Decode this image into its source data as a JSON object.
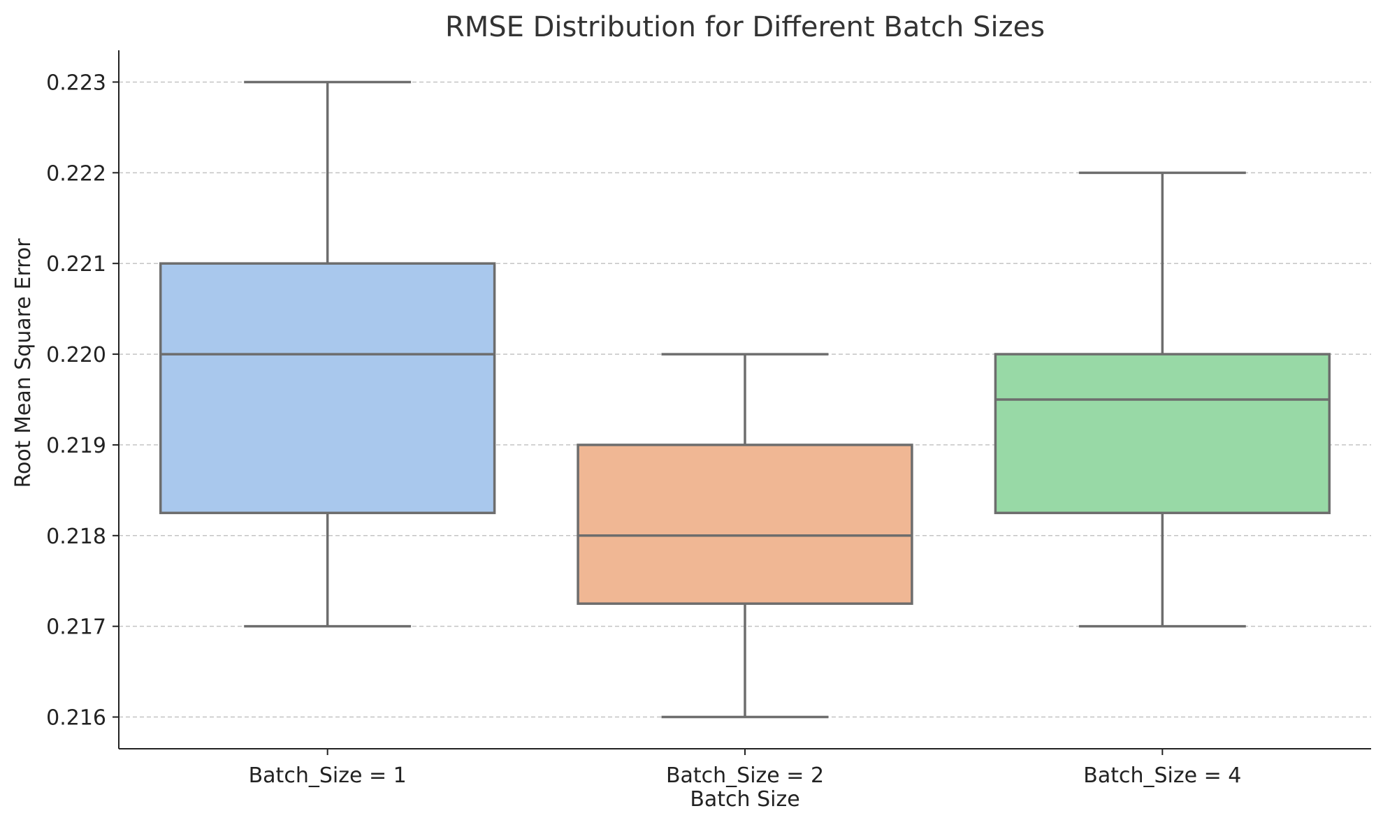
{
  "chart_data": {
    "type": "box",
    "title": "RMSE Distribution for Different Batch Sizes",
    "xlabel": "Batch Size",
    "ylabel": "Root Mean Square Error",
    "ylim": [
      0.21565,
      0.22335
    ],
    "yticks": [
      0.216,
      0.217,
      0.218,
      0.219,
      0.22,
      0.221,
      0.222,
      0.223
    ],
    "ytick_labels": [
      "0.216",
      "0.217",
      "0.218",
      "0.219",
      "0.220",
      "0.221",
      "0.222",
      "0.223"
    ],
    "grid": "horizontal-dashed",
    "categories": [
      "Batch_Size = 1",
      "Batch_Size = 2",
      "Batch_Size = 4"
    ],
    "boxes": [
      {
        "category": "Batch_Size = 1",
        "whisker_low": 0.217,
        "q1": 0.21825,
        "median": 0.22,
        "q3": 0.221,
        "whisker_high": 0.223,
        "color": "#a9c8ed"
      },
      {
        "category": "Batch_Size = 2",
        "whisker_low": 0.216,
        "q1": 0.21725,
        "median": 0.218,
        "q3": 0.219,
        "whisker_high": 0.22,
        "color": "#f0b794"
      },
      {
        "category": "Batch_Size = 4",
        "whisker_low": 0.217,
        "q1": 0.21825,
        "median": 0.2195,
        "q3": 0.22,
        "whisker_high": 0.222,
        "color": "#98d9a6"
      }
    ],
    "line_color": "#6d6d6d",
    "grid_color": "#c4c4c4",
    "axis_color": "#222222"
  }
}
